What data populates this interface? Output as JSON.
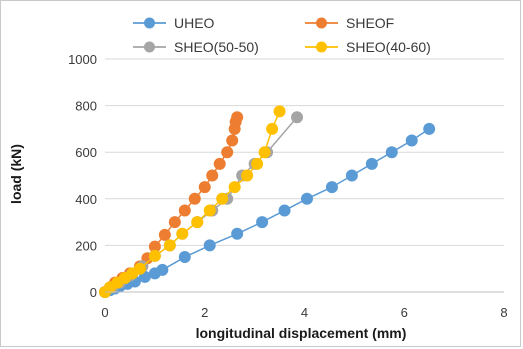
{
  "chart_data": {
    "type": "line",
    "title": "",
    "xlabel": "longitudinal displacement (mm)",
    "ylabel": "load (kN)",
    "xlim": [
      0,
      8
    ],
    "ylim": [
      0,
      1000
    ],
    "xticks": [
      0,
      2,
      4,
      6,
      8
    ],
    "yticks": [
      0,
      200,
      400,
      600,
      800,
      1000
    ],
    "grid": "horizontal",
    "legend_position": "top",
    "series": [
      {
        "name": "UHEO",
        "color": "#5b9bd5",
        "x": [
          0.0,
          0.1,
          0.2,
          0.3,
          0.45,
          0.6,
          0.8,
          1.0,
          1.15,
          1.6,
          2.1,
          2.65,
          3.15,
          3.6,
          4.05,
          4.55,
          4.95,
          5.35,
          5.75,
          6.15,
          6.5
        ],
        "y": [
          0,
          8,
          15,
          25,
          35,
          45,
          65,
          80,
          95,
          150,
          200,
          250,
          300,
          350,
          400,
          450,
          500,
          550,
          600,
          650,
          700
        ]
      },
      {
        "name": "SHEOF",
        "color": "#ed7d31",
        "x": [
          0.0,
          0.1,
          0.2,
          0.35,
          0.5,
          0.7,
          0.85,
          1.0,
          1.2,
          1.4,
          1.6,
          1.8,
          2.0,
          2.15,
          2.3,
          2.45,
          2.55,
          2.6,
          2.62,
          2.65
        ],
        "y": [
          0,
          20,
          40,
          60,
          80,
          110,
          145,
          195,
          245,
          300,
          350,
          400,
          450,
          500,
          550,
          600,
          650,
          700,
          730,
          750
        ]
      },
      {
        "name": "SHEO(50-50)",
        "color": "#a5a5a5",
        "x": [
          0.0,
          0.15,
          0.3,
          0.5,
          0.75,
          1.0,
          1.3,
          1.55,
          1.85,
          2.15,
          2.45,
          2.75,
          3.0,
          3.25,
          3.85
        ],
        "y": [
          0,
          20,
          40,
          70,
          110,
          155,
          200,
          250,
          300,
          350,
          400,
          500,
          550,
          600,
          750
        ]
      },
      {
        "name": "SHEO(40-60)",
        "color": "#ffc000",
        "x": [
          0.0,
          0.1,
          0.25,
          0.4,
          0.55,
          0.7,
          1.0,
          1.3,
          1.55,
          1.85,
          2.1,
          2.35,
          2.6,
          2.85,
          3.05,
          3.2,
          3.35,
          3.5
        ],
        "y": [
          0,
          20,
          40,
          60,
          80,
          100,
          155,
          200,
          250,
          300,
          350,
          400,
          450,
          500,
          550,
          600,
          700,
          775
        ]
      }
    ]
  }
}
